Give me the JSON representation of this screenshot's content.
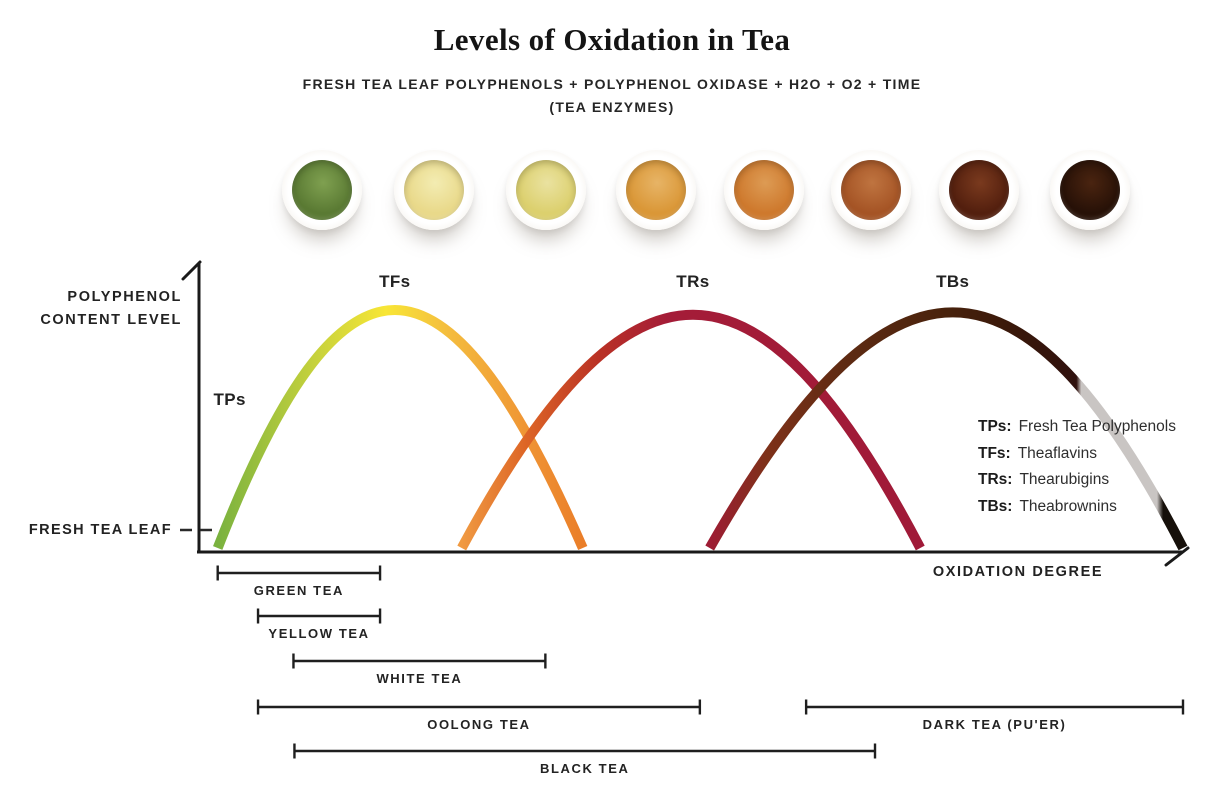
{
  "page": {
    "title": "Levels of Oxidation in Tea",
    "subtitle_line1": "FRESH TEA LEAF POLYPHENOLS + POLYPHENOL OXIDASE + H2O + O2 + TIME",
    "subtitle_line2": "(TEA ENZYMES)"
  },
  "cups": [
    {
      "name": "tea-cup-1-green",
      "light": "#7fa050",
      "main": "#5a7a33"
    },
    {
      "name": "tea-cup-2-pale-yellow",
      "light": "#f3ecb2",
      "main": "#e9d98a"
    },
    {
      "name": "tea-cup-3-yellow",
      "light": "#eae2a0",
      "main": "#dcd06e"
    },
    {
      "name": "tea-cup-4-amber",
      "light": "#e7b466",
      "main": "#da9737"
    },
    {
      "name": "tea-cup-5-orange",
      "light": "#dd9b54",
      "main": "#ce792d"
    },
    {
      "name": "tea-cup-6-red-brown",
      "light": "#bf7440",
      "main": "#a55425"
    },
    {
      "name": "tea-cup-7-dark-red",
      "light": "#7a3a1e",
      "main": "#531f0e"
    },
    {
      "name": "tea-cup-8-near-black",
      "light": "#4a2410",
      "main": "#271107"
    }
  ],
  "chart_data": {
    "type": "line",
    "title": "Levels of Oxidation in Tea",
    "xlabel": "OXIDATION DEGREE",
    "ylabel": "POLYPHENOL CONTENT LEVEL",
    "ylabel_lines": [
      "POLYPHENOL",
      "CONTENT LEVEL"
    ],
    "baseline_label": "FRESH TEA LEAF",
    "x_range_pct": [
      0,
      100
    ],
    "y_range_level": [
      0,
      1
    ],
    "grid": false,
    "legend_position": "right",
    "curves": [
      {
        "peak_label": "TFs",
        "start_label": "TPs",
        "x_start_pct": 1.9,
        "x_peak_pct": 19.9,
        "x_end_pct": 39.0,
        "peak_level": 1.0,
        "gradient": [
          {
            "offset": 0,
            "color": "#7ab23f"
          },
          {
            "offset": 0.27,
            "color": "#c7d23c"
          },
          {
            "offset": 0.46,
            "color": "#f8e636"
          },
          {
            "offset": 0.63,
            "color": "#f4bd3e"
          },
          {
            "offset": 0.85,
            "color": "#ef9434"
          },
          {
            "offset": 1,
            "color": "#ea7e29"
          }
        ]
      },
      {
        "peak_label": "TRs",
        "x_start_pct": 26.7,
        "x_peak_pct": 50.2,
        "x_end_pct": 73.3,
        "peak_level": 0.98,
        "gradient": [
          {
            "offset": 0,
            "color": "#f09a42"
          },
          {
            "offset": 0.14,
            "color": "#dd6526"
          },
          {
            "offset": 0.3,
            "color": "#b93125"
          },
          {
            "offset": 0.45,
            "color": "#a41c38"
          },
          {
            "offset": 1,
            "color": "#a01a38"
          }
        ]
      },
      {
        "peak_label": "TBs",
        "x_start_pct": 51.9,
        "x_peak_pct": 76.6,
        "x_end_pct": 100,
        "peak_level": 0.99,
        "gradient": [
          {
            "offset": 0,
            "color": "#9e1c34"
          },
          {
            "offset": 0.12,
            "color": "#7e3119"
          },
          {
            "offset": 0.28,
            "color": "#5f2b13"
          },
          {
            "offset": 0.5,
            "color": "#48220c"
          },
          {
            "offset": 0.65,
            "color": "#38170a"
          },
          {
            "offset": 0.775,
            "color": "#30110e"
          },
          {
            "offset": 0.785,
            "color": "#c9c5c3"
          },
          {
            "offset": 0.945,
            "color": "#c9c5c3"
          },
          {
            "offset": 0.958,
            "color": "#16100a"
          },
          {
            "offset": 1,
            "color": "#16100a"
          }
        ]
      }
    ],
    "tea_ranges": [
      {
        "label": "GREEN TEA",
        "start_pct": 1.9,
        "end_pct": 18.4,
        "row": 0
      },
      {
        "label": "YELLOW TEA",
        "start_pct": 6.0,
        "end_pct": 18.4,
        "row": 1
      },
      {
        "label": "WHITE TEA",
        "start_pct": 9.6,
        "end_pct": 35.2,
        "row": 2
      },
      {
        "label": "OOLONG TEA",
        "start_pct": 6.0,
        "end_pct": 50.9,
        "row": 3
      },
      {
        "label": "DARK TEA (PU'ER)",
        "start_pct": 61.7,
        "end_pct": 100,
        "row": 3
      },
      {
        "label": "BLACK TEA",
        "start_pct": 9.7,
        "end_pct": 68.7,
        "row": 4
      }
    ],
    "legend": [
      {
        "label": "TPs:",
        "text": "Fresh Tea Polyphenols"
      },
      {
        "label": "TFs:",
        "text": "Theaflavins"
      },
      {
        "label": "TRs:",
        "text": "Thearubigins"
      },
      {
        "label": "TBs:",
        "text": "Theabrownins"
      }
    ]
  }
}
